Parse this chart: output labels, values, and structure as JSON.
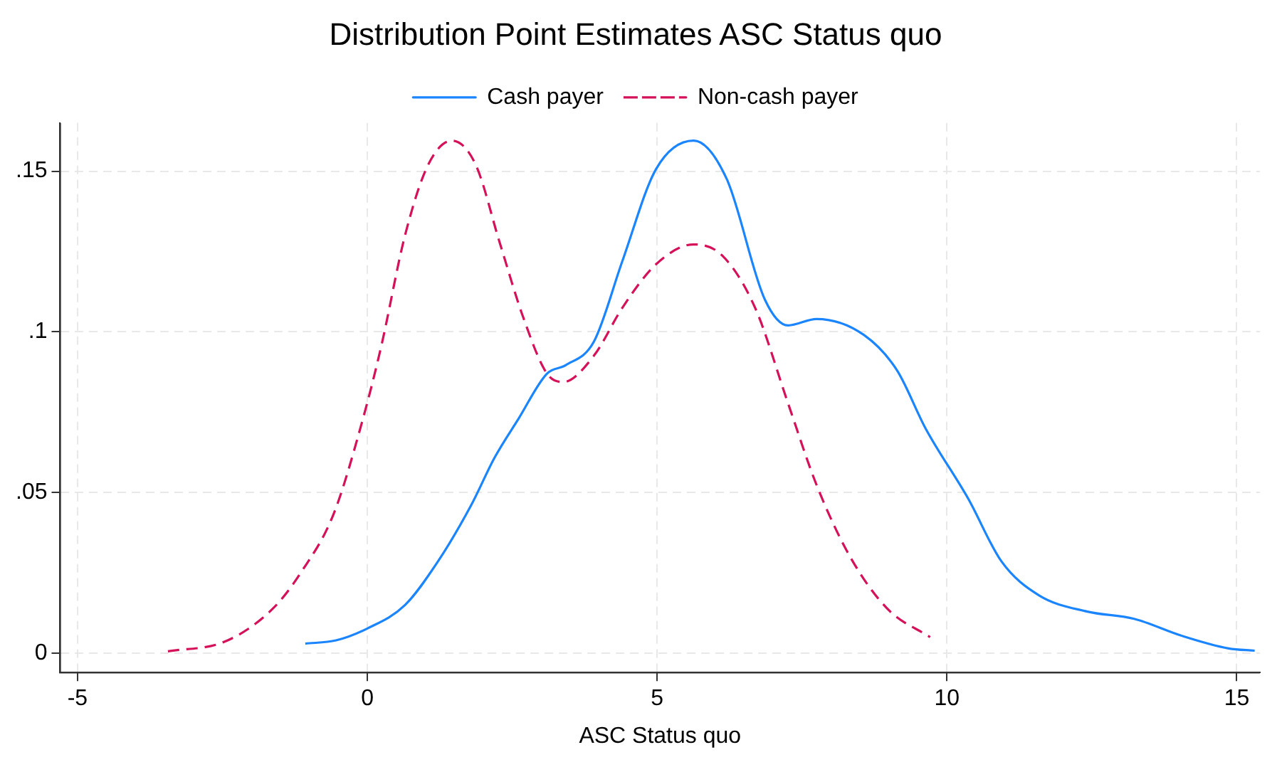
{
  "chart_data": {
    "type": "line",
    "title": "Distribution Point Estimates ASC Status quo",
    "xlabel": "ASC Status quo",
    "xlim": [
      -5.3,
      15.4
    ],
    "xticks": [
      -5,
      0,
      5,
      10,
      15
    ],
    "ylim": [
      -0.006,
      0.165
    ],
    "yticks": [
      {
        "value": 0,
        "label": "0"
      },
      {
        "value": 0.05,
        "label": ".05"
      },
      {
        "value": 0.1,
        "label": ".1"
      },
      {
        "value": 0.15,
        "label": ".15"
      }
    ],
    "grid": true,
    "legend": "top",
    "marker": "none",
    "series": [
      {
        "name": "Cash payer",
        "color": "#1a85ff",
        "line_style": "solid",
        "x": [
          -1.07,
          -0.54,
          0,
          0.65,
          1.22,
          1.79,
          2.2,
          2.61,
          3.1,
          3.42,
          3.91,
          4.4,
          4.98,
          5.63,
          6.2,
          6.86,
          7.26,
          7.75,
          8.57,
          9.14,
          9.63,
          10.37,
          10.94,
          11.59,
          12.41,
          13.23,
          14.04,
          14.86,
          15.31
        ],
        "values": [
          0.003,
          0.004,
          0.0077,
          0.015,
          0.0286,
          0.046,
          0.061,
          0.073,
          0.087,
          0.0896,
          0.097,
          0.122,
          0.1506,
          0.1595,
          0.1476,
          0.11,
          0.102,
          0.104,
          0.099,
          0.088,
          0.07,
          0.048,
          0.0286,
          0.018,
          0.013,
          0.0107,
          0.0055,
          0.0015,
          0.0008
        ]
      },
      {
        "name": "Non-cash payer",
        "color": "#d41159",
        "line_style": "dashed",
        "x": [
          -3.44,
          -2.46,
          -1.64,
          -1.15,
          -0.58,
          -0.09,
          0.24,
          0.65,
          1.05,
          1.46,
          1.87,
          2.28,
          2.69,
          3.1,
          3.38,
          3.91,
          4.4,
          4.98,
          5.63,
          6.12,
          6.69,
          7.26,
          7.75,
          8.33,
          8.98,
          9.71
        ],
        "values": [
          0.0006,
          0.0036,
          0.0137,
          0.025,
          0.0434,
          0.072,
          0.0955,
          0.13,
          0.152,
          0.1595,
          0.152,
          0.128,
          0.1045,
          0.087,
          0.0844,
          0.0926,
          0.1075,
          0.121,
          0.1272,
          0.1238,
          0.1075,
          0.0777,
          0.0524,
          0.03,
          0.0137,
          0.005
        ]
      }
    ]
  }
}
